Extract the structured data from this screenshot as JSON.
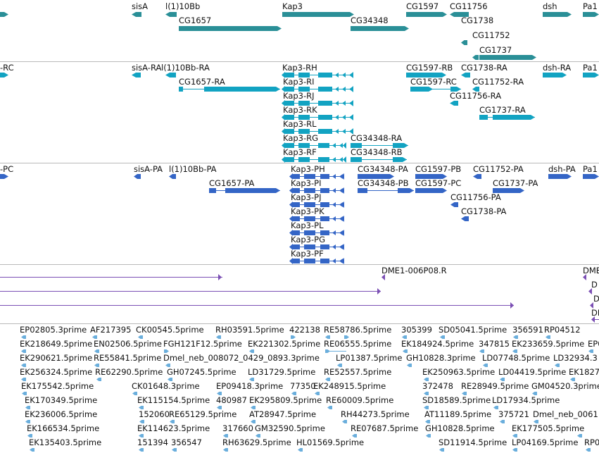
{
  "colors": {
    "gene": "#2a8f97",
    "rna": "#12a3c2",
    "protein": "#3465c6",
    "clone": "#7b4fb4",
    "est": "#6aaedc",
    "separator": "#b9b9b9"
  },
  "tracks": {
    "genes": {
      "features": [
        {
          "label": "sisA"
        },
        {
          "label": "l(1)10Bb"
        },
        {
          "label": "Kap3"
        },
        {
          "label": "CG1597"
        },
        {
          "label": "CG11756"
        },
        {
          "label": "dsh"
        },
        {
          "label": "Pa1"
        },
        {
          "label": "CG1657"
        },
        {
          "label": "CG34348"
        },
        {
          "label": "CG1738"
        },
        {
          "label": "CG11752"
        },
        {
          "label": "CG1737"
        }
      ]
    },
    "transcripts": {
      "features": [
        {
          "label": "-RC"
        },
        {
          "label": "sisA-RA"
        },
        {
          "label": "l(1)10Bb-RA"
        },
        {
          "label": "Kap3-RH"
        },
        {
          "label": "CG1597-RB"
        },
        {
          "label": "CG1738-RA"
        },
        {
          "label": "dsh-RA"
        },
        {
          "label": "Pa1"
        },
        {
          "label": "CG1657-RA"
        },
        {
          "label": "Kap3-RI"
        },
        {
          "label": "CG1597-RC"
        },
        {
          "label": "CG11752-RA"
        },
        {
          "label": "Kap3-RJ"
        },
        {
          "label": "CG11756-RA"
        },
        {
          "label": "Kap3-RK"
        },
        {
          "label": "CG1737-RA"
        },
        {
          "label": "Kap3-RL"
        },
        {
          "label": "Kap3-RG"
        },
        {
          "label": "CG34348-RA"
        },
        {
          "label": "Kap3-RF"
        },
        {
          "label": "CG34348-RB"
        }
      ]
    },
    "proteins": {
      "features": [
        {
          "label": "-PC"
        },
        {
          "label": "sisA-PA"
        },
        {
          "label": "l(1)10Bb-PA"
        },
        {
          "label": "Kap3-PH"
        },
        {
          "label": "CG34348-PA"
        },
        {
          "label": "CG1597-PB"
        },
        {
          "label": "CG11752-PA"
        },
        {
          "label": "dsh-PA"
        },
        {
          "label": "Pa1"
        },
        {
          "label": "CG1657-PA"
        },
        {
          "label": "Kap3-PI"
        },
        {
          "label": "CG34348-PB"
        },
        {
          "label": "CG1597-PC"
        },
        {
          "label": "CG1737-PA"
        },
        {
          "label": "Kap3-PJ"
        },
        {
          "label": "CG11756-PA"
        },
        {
          "label": "Kap3-PK"
        },
        {
          "label": "CG1738-PA"
        },
        {
          "label": "Kap3-PL"
        },
        {
          "label": "Kap3-PG"
        },
        {
          "label": "Kap3-PF"
        }
      ]
    },
    "clones": {
      "features": [
        {
          "label": "DME1-006P08.R"
        },
        {
          "label": "DME"
        },
        {
          "label": "D"
        },
        {
          "label": "D"
        },
        {
          "label": "DI"
        }
      ]
    },
    "ests": {
      "features": [
        {
          "label": "EP02805.3prime"
        },
        {
          "label": "AF217395"
        },
        {
          "label": "CK00545.5prime"
        },
        {
          "label": "RH03591.5prime"
        },
        {
          "label": "422138"
        },
        {
          "label": "RE58786.5prime"
        },
        {
          "label": "305399"
        },
        {
          "label": "SD05041.5prime"
        },
        {
          "label": "356591"
        },
        {
          "label": "RP04512"
        },
        {
          "label": "EK218649.5prime"
        },
        {
          "label": "EN02506.5prime"
        },
        {
          "label": "FGH121F12.5prime"
        },
        {
          "label": "EK221302.5prime"
        },
        {
          "label": "RE06555.5prime"
        },
        {
          "label": "EK184924.5prime"
        },
        {
          "label": "347815"
        },
        {
          "label": "EK233659.5prime"
        },
        {
          "label": "EP0"
        },
        {
          "label": "EK290621.5prime"
        },
        {
          "label": "RE55841.5prime"
        },
        {
          "label": "Dmel_neb_008072_0429_0893.3prime"
        },
        {
          "label": "LP01387.5prime"
        },
        {
          "label": "GH10828.3prime"
        },
        {
          "label": "LD07748.5prime"
        },
        {
          "label": "LD32934.3"
        },
        {
          "label": "EK256324.5prime"
        },
        {
          "label": "RE62290.5prime"
        },
        {
          "label": "GH07245.5prime"
        },
        {
          "label": "LD31729.5prime"
        },
        {
          "label": "RE52557.5prime"
        },
        {
          "label": "EK250963.5prime"
        },
        {
          "label": "LD04419.5prime"
        },
        {
          "label": "EK1827"
        },
        {
          "label": "EK175542.5prime"
        },
        {
          "label": "CK01648.3prime"
        },
        {
          "label": "EP09418.3prime"
        },
        {
          "label": "77350"
        },
        {
          "label": "EK248915.5prime"
        },
        {
          "label": "372478"
        },
        {
          "label": "RE28949.5prime"
        },
        {
          "label": "GM04520.3prime"
        },
        {
          "label": "EK170349.5prime"
        },
        {
          "label": "EK115154.5prime"
        },
        {
          "label": "480987"
        },
        {
          "label": "EK295809.5prime"
        },
        {
          "label": "RE60009.5prime"
        },
        {
          "label": "SD18589.5prime"
        },
        {
          "label": "LD17934.5prime"
        },
        {
          "label": "EK236006.5prime"
        },
        {
          "label": "152060"
        },
        {
          "label": "RE65129.5prime"
        },
        {
          "label": "AT28947.5prime"
        },
        {
          "label": "RH44273.5prime"
        },
        {
          "label": "AT11189.5prime"
        },
        {
          "label": "375721"
        },
        {
          "label": "Dmel_neb_0061"
        },
        {
          "label": "EK166534.5prime"
        },
        {
          "label": "EK114623.5prime"
        },
        {
          "label": "317660"
        },
        {
          "label": "GM32590.5prime"
        },
        {
          "label": "RE07687.5prime"
        },
        {
          "label": "GH10828.5prime"
        },
        {
          "label": "EK177505.5prime"
        },
        {
          "label": "EK135403.5prime"
        },
        {
          "label": "151394"
        },
        {
          "label": "356547"
        },
        {
          "label": "RH63629.5prime"
        },
        {
          "label": "HL01569.5prime"
        },
        {
          "label": "SD11914.5prime"
        },
        {
          "label": "LP04169.5prime"
        },
        {
          "label": "RP0"
        }
      ]
    }
  }
}
